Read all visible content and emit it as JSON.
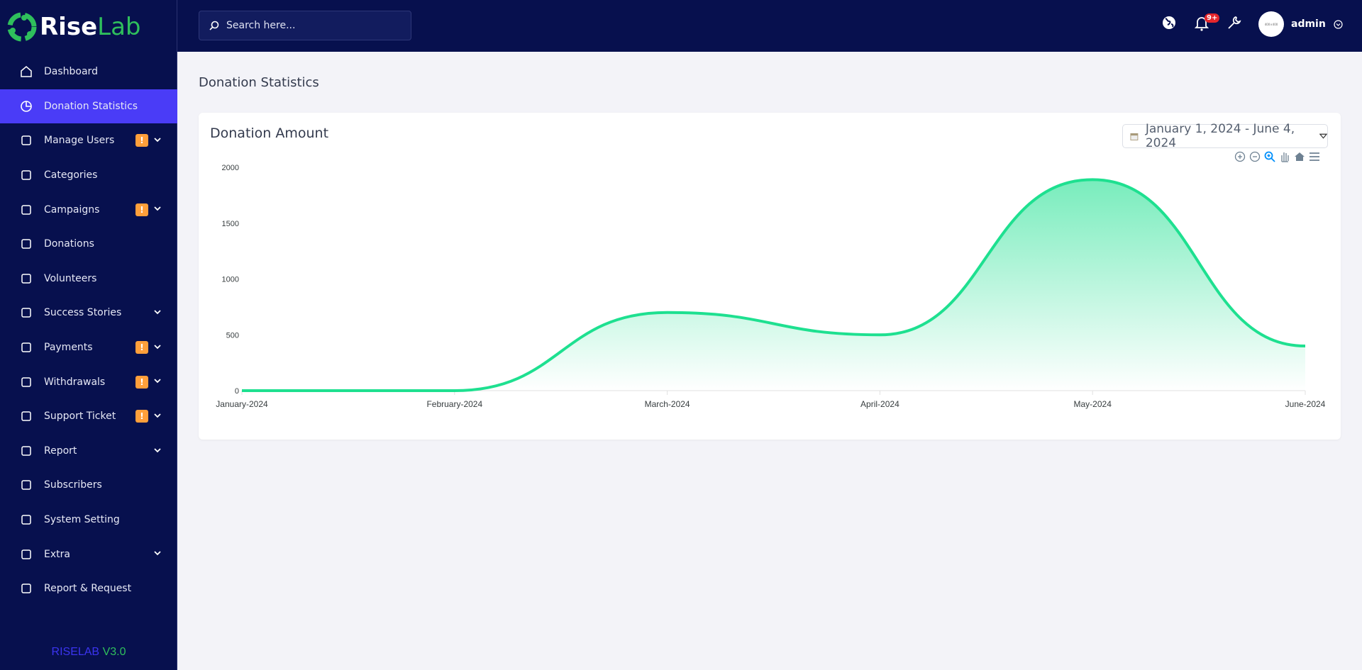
{
  "brand": {
    "logo_rise": "Rise",
    "logo_lab": "Lab",
    "version_name": "RISELAB",
    "version_number": "V3.0"
  },
  "sidebar": {
    "items": [
      {
        "label": "Dashboard",
        "icon": "home-icon"
      },
      {
        "label": "Donation Statistics",
        "icon": "pie-chart-icon",
        "active": true
      },
      {
        "label": "Manage Users",
        "icon": "users-icon",
        "badge": "!",
        "chevron": true
      },
      {
        "label": "Categories",
        "icon": "categories-icon"
      },
      {
        "label": "Campaigns",
        "icon": "hand-dollar-icon",
        "badge": "!",
        "chevron": true
      },
      {
        "label": "Donations",
        "icon": "wallet-icon"
      },
      {
        "label": "Volunteers",
        "icon": "volunteer-icon"
      },
      {
        "label": "Success Stories",
        "icon": "story-icon",
        "chevron": true
      },
      {
        "label": "Payments",
        "icon": "invoice-icon",
        "badge": "!",
        "chevron": true
      },
      {
        "label": "Withdrawals",
        "icon": "bank-icon",
        "badge": "!",
        "chevron": true
      },
      {
        "label": "Support Ticket",
        "icon": "ticket-icon",
        "badge": "!",
        "chevron": true
      },
      {
        "label": "Report",
        "icon": "list-icon",
        "chevron": true
      },
      {
        "label": "Subscribers",
        "icon": "thumbs-up-icon"
      },
      {
        "label": "System Setting",
        "icon": "settings-icon"
      },
      {
        "label": "Extra",
        "icon": "table-icon",
        "chevron": true
      },
      {
        "label": "Report & Request",
        "icon": "bug-icon"
      }
    ]
  },
  "topbar": {
    "search_placeholder": "Search here...",
    "notification_count": "9+",
    "avatar_text": "400×400",
    "user": "admin"
  },
  "page": {
    "title": "Donation Statistics"
  },
  "card": {
    "title": "Donation Amount",
    "date_range": "January 1, 2024 - June 4, 2024"
  },
  "colors": {
    "sidebar": "#07104e",
    "active": "#4a3cf7",
    "series": "#1ee090",
    "badge": "#ff9f3b",
    "brand_green": "#2fbf5c"
  },
  "chart_data": {
    "type": "area",
    "title": "Donation Amount",
    "categories": [
      "January-2024",
      "February-2024",
      "March-2024",
      "April-2024",
      "May-2024",
      "June-2024"
    ],
    "series": [
      {
        "values": [
          0,
          0,
          700,
          500,
          1890,
          400
        ]
      }
    ],
    "yticks": [
      0,
      500,
      1000,
      1500,
      2000
    ],
    "ylim": [
      0,
      2000
    ],
    "grid": false,
    "curve": "smooth"
  }
}
